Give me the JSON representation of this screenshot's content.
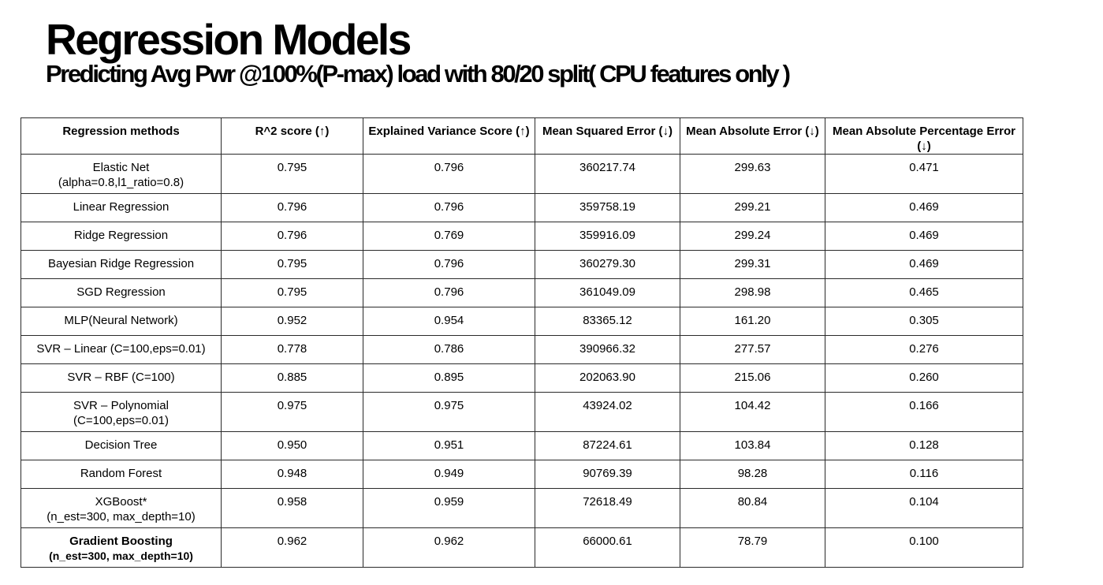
{
  "title": "Regression Models",
  "subtitle": "Predicting Avg Pwr @100%(P-max) load with 80/20 split( CPU features only )",
  "table": {
    "headers": [
      "Regression methods",
      "R^2 score (↑)",
      "Explained Variance Score (↑)",
      "Mean Squared Error (↓)",
      "Mean Absolute Error (↓)",
      "Mean Absolute Percentage Error (↓)"
    ],
    "rows": [
      {
        "method": "Elastic Net",
        "method_sub": "(alpha=0.8,l1_ratio=0.8)",
        "r2": "0.795",
        "evs": "0.796",
        "mse": "360217.74",
        "mae": "299.63",
        "mape": "0.471"
      },
      {
        "method": "Linear Regression",
        "method_sub": "",
        "r2": "0.796",
        "evs": "0.796",
        "mse": "359758.19",
        "mae": "299.21",
        "mape": "0.469"
      },
      {
        "method": "Ridge Regression",
        "method_sub": "",
        "r2": "0.796",
        "evs": "0.769",
        "mse": "359916.09",
        "mae": "299.24",
        "mape": "0.469"
      },
      {
        "method": "Bayesian Ridge Regression",
        "method_sub": "",
        "r2": "0.795",
        "evs": "0.796",
        "mse": "360279.30",
        "mae": "299.31",
        "mape": "0.469"
      },
      {
        "method": "SGD Regression",
        "method_sub": "",
        "r2": "0.795",
        "evs": "0.796",
        "mse": "361049.09",
        "mae": "298.98",
        "mape": "0.465"
      },
      {
        "method": "MLP(Neural Network)",
        "method_sub": "",
        "r2": "0.952",
        "evs": "0.954",
        "mse": "83365.12",
        "mae": "161.20",
        "mape": "0.305"
      },
      {
        "method": "SVR – Linear (C=100,eps=0.01)",
        "method_sub": "",
        "r2": "0.778",
        "evs": "0.786",
        "mse": "390966.32",
        "mae": "277.57",
        "mape": "0.276"
      },
      {
        "method": "SVR – RBF (C=100)",
        "method_sub": "",
        "r2": "0.885",
        "evs": "0.895",
        "mse": "202063.90",
        "mae": "215.06",
        "mape": "0.260"
      },
      {
        "method": "SVR – Polynomial",
        "method_sub": "(C=100,eps=0.01)",
        "r2": "0.975",
        "evs": "0.975",
        "mse": "43924.02",
        "mae": "104.42",
        "mape": "0.166"
      },
      {
        "method": "Decision Tree",
        "method_sub": "",
        "r2": "0.950",
        "evs": "0.951",
        "mse": "87224.61",
        "mae": "103.84",
        "mape": "0.128"
      },
      {
        "method": "Random Forest",
        "method_sub": "",
        "r2": "0.948",
        "evs": "0.949",
        "mse": "90769.39",
        "mae": "98.28",
        "mape": "0.116"
      },
      {
        "method": "XGBoost*",
        "method_sub": "(n_est=300, max_depth=10)",
        "r2": "0.958",
        "evs": "0.959",
        "mse": "72618.49",
        "mae": "80.84",
        "mape": "0.104"
      },
      {
        "method": "Gradient Boosting",
        "method_sub": "(n_est=300, max_depth=10)",
        "r2": "0.962",
        "evs": "0.962",
        "mse": "66000.61",
        "mae": "78.79",
        "mape": "0.100"
      }
    ]
  }
}
